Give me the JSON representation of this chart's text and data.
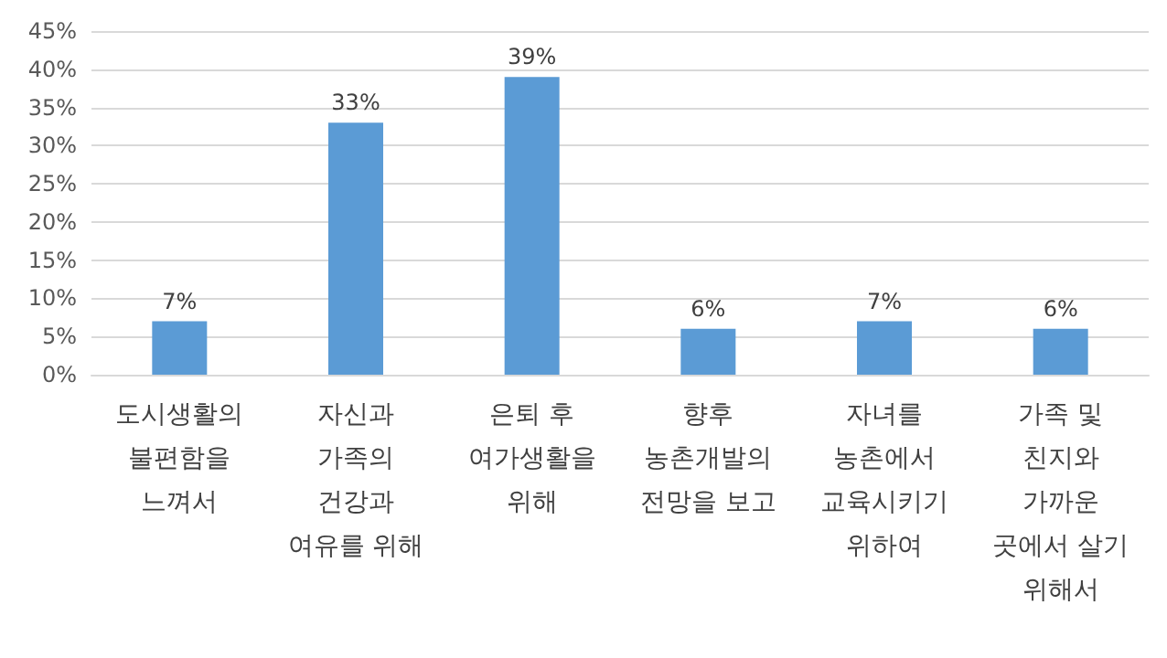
{
  "chart_data": {
    "type": "bar",
    "categories": [
      "도시생활의\n불편함을\n느껴서",
      "자신과\n가족의\n건강과\n여유를 위해",
      "은퇴 후\n여가생활을\n위해",
      "향후\n농촌개발의\n전망을 보고",
      "자녀를\n농촌에서\n교육시키기\n위하여",
      "가족 및\n친지와\n가까운\n곳에서 살기\n위해서"
    ],
    "values": [
      7,
      33,
      39,
      6,
      7,
      6
    ],
    "value_labels": [
      "7%",
      "33%",
      "39%",
      "6%",
      "7%",
      "6%"
    ],
    "color": "#5b9bd5",
    "ylim": [
      0,
      45
    ],
    "yticks": [
      {
        "value": 0,
        "label": "0%"
      },
      {
        "value": 5,
        "label": "5%"
      },
      {
        "value": 10,
        "label": "10%"
      },
      {
        "value": 15,
        "label": "15%"
      },
      {
        "value": 20,
        "label": "20%"
      },
      {
        "value": 25,
        "label": "25%"
      },
      {
        "value": 30,
        "label": "30%"
      },
      {
        "value": 35,
        "label": "35%"
      },
      {
        "value": 40,
        "label": "40%"
      },
      {
        "value": 45,
        "label": "45%"
      }
    ],
    "grid": "y"
  }
}
